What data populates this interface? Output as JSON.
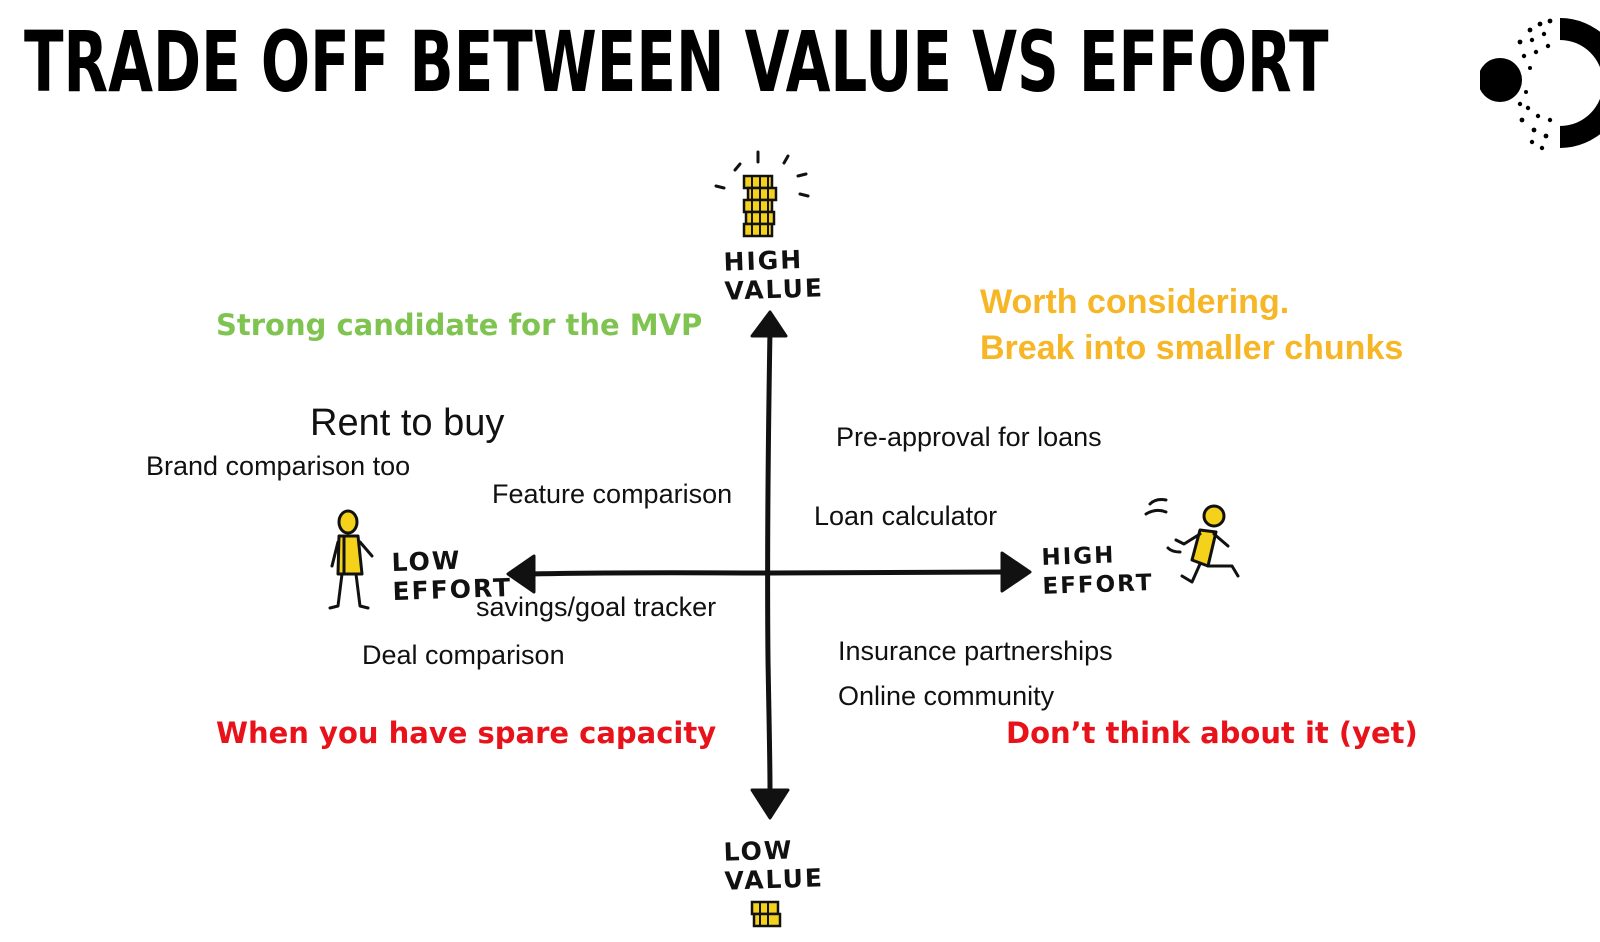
{
  "title": "TRADE OFF BETWEEN VALUE VS EFFORT",
  "axes": {
    "top": "HIGH\nVALUE",
    "bottom": "LOW\nVALUE",
    "left": "LOW\nEFFORT",
    "right": "HIGH\nEFFORT"
  },
  "quadrants": {
    "top_left": "Strong candidate for the MVP",
    "top_right_line1": "Worth considering.",
    "top_right_line2": "Break into smaller chunks",
    "bottom_left": "When you have spare capacity",
    "bottom_right": "Don’t think about it (yet)"
  },
  "items": {
    "rent_to_buy": "Rent to buy",
    "brand_comparison": "Brand comparison too",
    "feature_comparison": "Feature comparison",
    "pre_approval": "Pre-approval for loans",
    "loan_calculator": "Loan calculator",
    "savings_tracker": "savings/goal tracker",
    "deal_comparison": "Deal comparison",
    "insurance": "Insurance partnerships",
    "online_community": "Online community"
  },
  "colors": {
    "green": "#7fc451",
    "orange": "#f6b625",
    "red": "#e8121b",
    "yellow_icon": "#f4d11a"
  }
}
